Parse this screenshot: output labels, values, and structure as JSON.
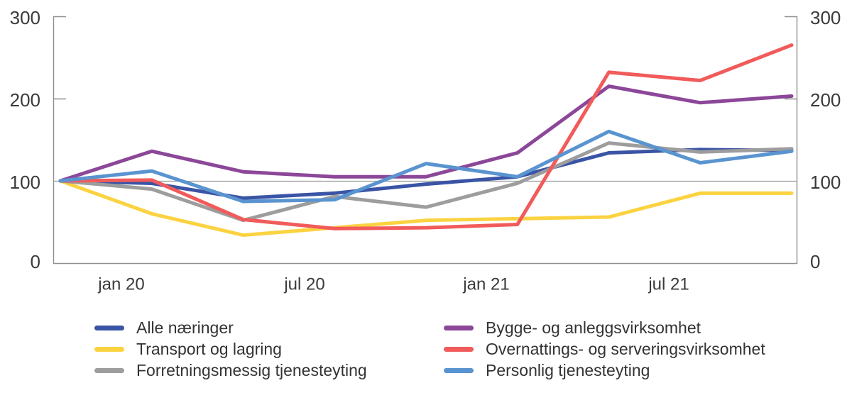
{
  "figure": {
    "background": "#ffffff",
    "axis_color": "#8f8f8f",
    "text_color": "#3a3a3a"
  },
  "chart_data": {
    "type": "line",
    "title": "",
    "xlabel": "",
    "ylabel": "",
    "ylim": [
      0,
      300
    ],
    "y_ticks": [
      300,
      200,
      100,
      0
    ],
    "y_tick_labels_left": [
      "300",
      "200",
      "100",
      "0"
    ],
    "y_tick_labels_right": [
      "300",
      "200",
      "100",
      "0"
    ],
    "x_tick_labels": [
      "jan 20",
      "jul 20",
      "jan 21",
      "jul 21"
    ],
    "x": [
      "nov. 19",
      "feb. 20",
      "mai 20",
      "aug. 20",
      "nov. 20",
      "feb. 21",
      "mai 21",
      "aug. 21",
      "nov. 21"
    ],
    "baseline_value": 100,
    "grid": "single horizontal reference line at 100",
    "legend_position": "bottom, two columns",
    "series": [
      {
        "name": "Alle næringer",
        "color": "#3A54A5",
        "values": [
          100,
          97,
          79,
          85,
          96,
          105,
          134,
          138,
          137
        ]
      },
      {
        "name": "Transport og lagring",
        "color": "#FBD341",
        "values": [
          100,
          60,
          34,
          43,
          52,
          54,
          56,
          85,
          85
        ]
      },
      {
        "name": "Forretningsmessig tjenesteyting",
        "color": "#9D9D9D",
        "values": [
          100,
          90,
          52,
          81,
          68,
          97,
          146,
          135,
          139
        ]
      },
      {
        "name": "Bygge- og anleggsvirksomhet",
        "color": "#8C4799",
        "values": [
          100,
          136,
          111,
          105,
          105,
          134,
          215,
          195,
          203
        ]
      },
      {
        "name": "Overnattings- og serveringsvirksomhet",
        "color": "#F15B5B",
        "values": [
          100,
          101,
          53,
          42,
          43,
          47,
          232,
          222,
          265
        ]
      },
      {
        "name": "Personlig tjenesteyting",
        "color": "#5A94D0",
        "values": [
          100,
          112,
          75,
          77,
          121,
          105,
          160,
          122,
          136
        ]
      }
    ]
  }
}
